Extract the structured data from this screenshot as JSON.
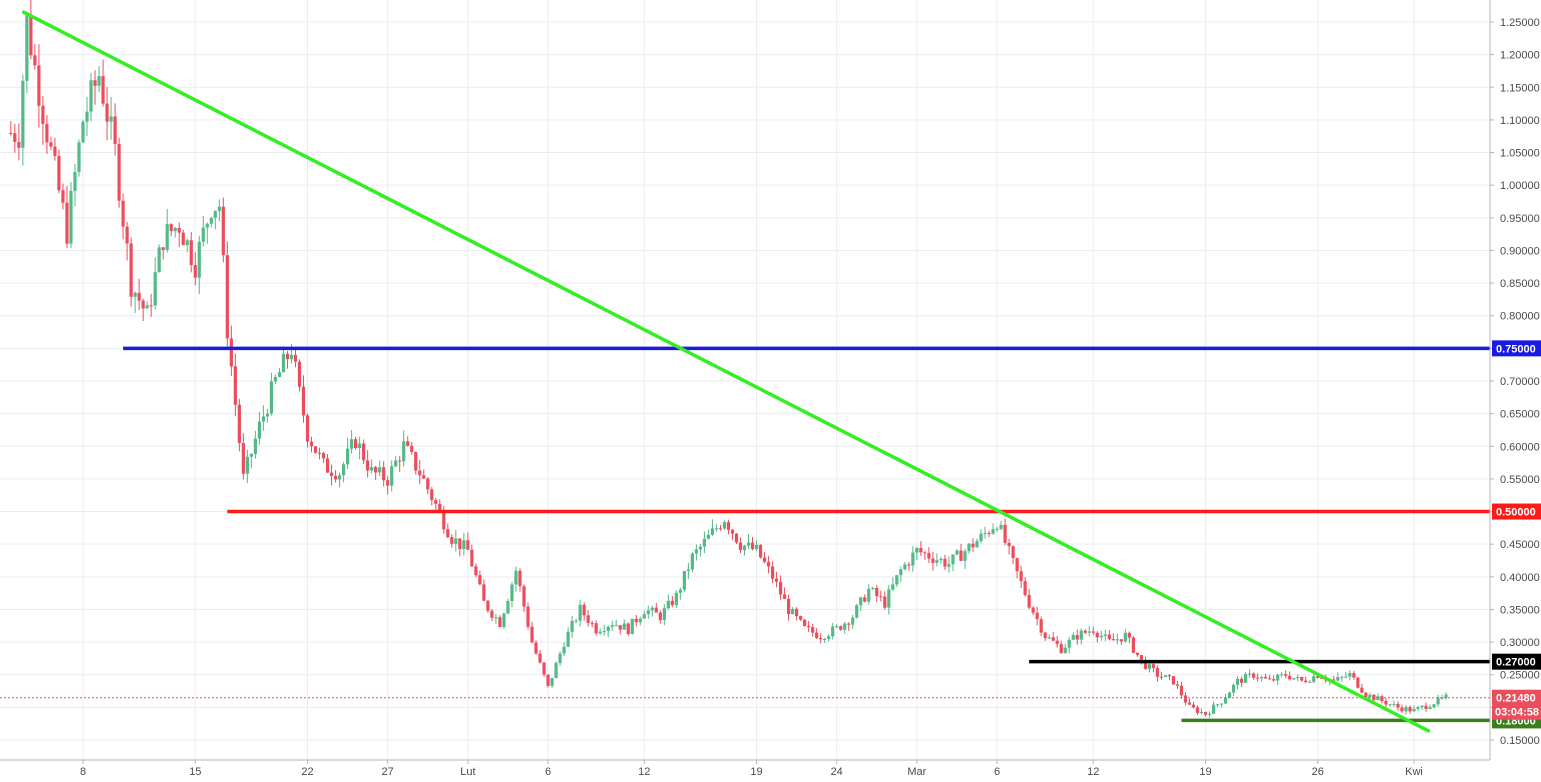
{
  "chart_data": {
    "type": "candlestick",
    "y_axis": {
      "ticks": [
        "1.25000",
        "1.20000",
        "1.15000",
        "1.10000",
        "1.05000",
        "1.00000",
        "0.95000",
        "0.90000",
        "0.85000",
        "0.80000",
        "0.75000",
        "0.70000",
        "0.65000",
        "0.60000",
        "0.55000",
        "0.50000",
        "0.45000",
        "0.40000",
        "0.35000",
        "0.30000",
        "0.25000",
        "0.20000",
        "0.15000"
      ],
      "ylim": [
        0.135,
        1.27
      ]
    },
    "x_axis": {
      "ticks": [
        "8",
        "15",
        "22",
        "27",
        "Lut",
        "6",
        "12",
        "19",
        "24",
        "Mar",
        "6",
        "12",
        "19",
        "26",
        "Kwi"
      ],
      "tick_days": [
        8,
        15,
        22,
        27,
        32,
        37,
        43,
        50,
        55,
        60,
        65,
        71,
        78,
        85,
        91
      ],
      "xlim": [
        3,
        95
      ]
    },
    "colors": {
      "up": "#53b987",
      "down": "#eb4d5c",
      "grid": "#e9edf2",
      "axis_text": "#4a4a4a"
    },
    "trendlines": [
      {
        "color": "#33ee22",
        "from": {
          "day": 4.3,
          "price": 1.265
        },
        "to": {
          "day": 91.9,
          "price": 0.164
        }
      }
    ],
    "horizontal_levels": [
      {
        "price": 0.75,
        "label": "0.75000",
        "color": "#1a1ae6",
        "from_day": 10.5
      },
      {
        "price": 0.5,
        "label": "0.50000",
        "color": "#ff1a1a",
        "from_day": 17.0
      },
      {
        "price": 0.27,
        "label": "0.27000",
        "color": "#000000",
        "from_day": 67.0
      },
      {
        "price": 0.18,
        "label": "0.18000",
        "color": "#3a7d1a",
        "from_day": 76.5
      }
    ],
    "current_price": {
      "price": 0.2148,
      "label": "0.21480",
      "countdown": "03:04:58",
      "color": "#eb4d5c"
    },
    "price_path": [
      [
        4,
        1.08
      ],
      [
        4.5,
        1.25
      ],
      [
        5,
        1.18
      ],
      [
        6,
        1.05
      ],
      [
        7,
        0.93
      ],
      [
        8,
        1.1
      ],
      [
        9,
        1.17
      ],
      [
        10,
        1.05
      ],
      [
        11,
        0.85
      ],
      [
        12,
        0.8
      ],
      [
        13,
        0.92
      ],
      [
        14,
        0.94
      ],
      [
        15,
        0.88
      ],
      [
        16,
        0.97
      ],
      [
        16.5,
        0.97
      ],
      [
        17,
        0.78
      ],
      [
        18,
        0.55
      ],
      [
        19,
        0.63
      ],
      [
        20,
        0.7
      ],
      [
        21,
        0.75
      ],
      [
        21.5,
        0.68
      ],
      [
        22,
        0.62
      ],
      [
        23,
        0.57
      ],
      [
        24,
        0.56
      ],
      [
        25,
        0.61
      ],
      [
        26,
        0.56
      ],
      [
        27,
        0.55
      ],
      [
        28,
        0.6
      ],
      [
        29,
        0.56
      ],
      [
        30,
        0.51
      ],
      [
        31,
        0.46
      ],
      [
        32,
        0.44
      ],
      [
        33,
        0.36
      ],
      [
        34,
        0.33
      ],
      [
        35,
        0.41
      ],
      [
        36,
        0.3
      ],
      [
        37,
        0.23
      ],
      [
        38,
        0.3
      ],
      [
        39,
        0.35
      ],
      [
        40,
        0.32
      ],
      [
        41,
        0.33
      ],
      [
        42,
        0.32
      ],
      [
        43,
        0.35
      ],
      [
        44,
        0.34
      ],
      [
        45,
        0.37
      ],
      [
        46,
        0.43
      ],
      [
        47,
        0.46
      ],
      [
        48,
        0.49
      ],
      [
        49,
        0.45
      ],
      [
        50,
        0.44
      ],
      [
        51,
        0.4
      ],
      [
        52,
        0.35
      ],
      [
        53,
        0.32
      ],
      [
        54,
        0.31
      ],
      [
        55,
        0.32
      ],
      [
        56,
        0.34
      ],
      [
        57,
        0.38
      ],
      [
        58,
        0.36
      ],
      [
        59,
        0.41
      ],
      [
        60,
        0.44
      ],
      [
        61,
        0.43
      ],
      [
        62,
        0.42
      ],
      [
        63,
        0.44
      ],
      [
        64,
        0.46
      ],
      [
        65,
        0.485
      ],
      [
        66,
        0.42
      ],
      [
        67,
        0.36
      ],
      [
        68,
        0.31
      ],
      [
        69,
        0.29
      ],
      [
        70,
        0.31
      ],
      [
        71,
        0.32
      ],
      [
        72,
        0.3
      ],
      [
        73,
        0.31
      ],
      [
        74,
        0.27
      ],
      [
        75,
        0.25
      ],
      [
        76,
        0.24
      ],
      [
        77,
        0.2
      ],
      [
        78,
        0.19
      ],
      [
        79,
        0.21
      ],
      [
        80,
        0.24
      ],
      [
        81,
        0.25
      ],
      [
        82,
        0.24
      ],
      [
        83,
        0.25
      ],
      [
        84,
        0.24
      ],
      [
        85,
        0.25
      ],
      [
        86,
        0.24
      ],
      [
        87,
        0.25
      ],
      [
        88,
        0.22
      ],
      [
        89,
        0.21
      ],
      [
        90,
        0.2
      ],
      [
        91,
        0.195
      ],
      [
        92,
        0.205
      ],
      [
        93,
        0.215
      ]
    ]
  }
}
